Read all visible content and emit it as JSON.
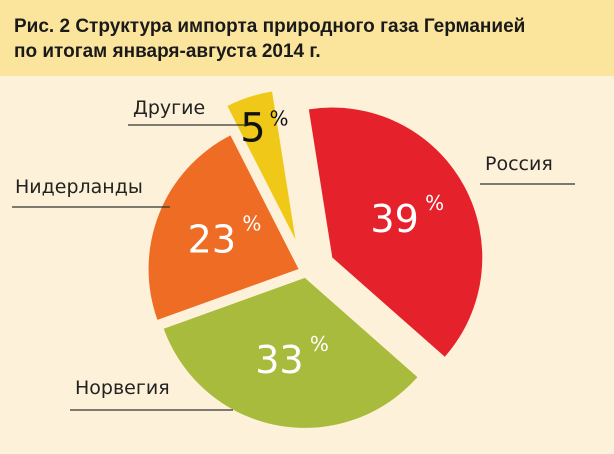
{
  "chart_data": {
    "type": "pie",
    "title_line1": "Рис. 2 Структура импорта природного газа Германией",
    "title_line2": "по итогам января-августа 2014 г.",
    "unit": "%",
    "slices": [
      {
        "name": "Россия",
        "value": 39,
        "label": "39",
        "color": "#e5222b"
      },
      {
        "name": "Норвегия",
        "value": 33,
        "label": "33",
        "color": "#a9bb3c"
      },
      {
        "name": "Нидерланды",
        "value": 23,
        "label": "23",
        "color": "#ef6c25"
      },
      {
        "name": "Другие",
        "value": 5,
        "label": "5",
        "color": "#f0c818"
      }
    ]
  }
}
